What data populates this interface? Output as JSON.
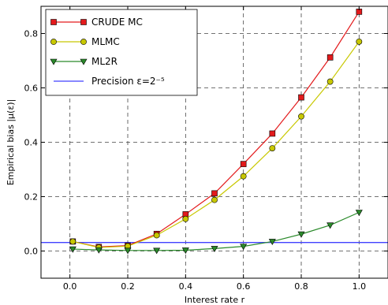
{
  "chart_data": {
    "type": "line",
    "xlabel": "Interest rate r",
    "ylabel": "Empirical bias |μ(ε)|",
    "xlim": [
      -0.1,
      1.1
    ],
    "ylim": [
      -0.1,
      0.9
    ],
    "xticks": [
      "0.0",
      "0.2",
      "0.4",
      "0.6",
      "0.8",
      "1.0"
    ],
    "yticks": [
      "0.0",
      "0.2",
      "0.4",
      "0.6",
      "0.8"
    ],
    "grid": true,
    "legend_position": "top-left",
    "series": [
      {
        "name": "CRUDE MC",
        "color": "#e31a1c",
        "marker": "square",
        "x": [
          0.01,
          0.1,
          0.2,
          0.3,
          0.4,
          0.5,
          0.6,
          0.7,
          0.8,
          0.9,
          1.0
        ],
        "y": [
          0.035,
          0.015,
          0.02,
          0.063,
          0.135,
          0.212,
          0.32,
          0.432,
          0.565,
          0.712,
          0.88
        ]
      },
      {
        "name": "MLMC",
        "color": "#c8c800",
        "marker": "circle",
        "x": [
          0.01,
          0.1,
          0.2,
          0.3,
          0.4,
          0.5,
          0.6,
          0.7,
          0.8,
          0.9,
          1.0
        ],
        "y": [
          0.035,
          0.013,
          0.018,
          0.058,
          0.118,
          0.188,
          0.275,
          0.378,
          0.495,
          0.623,
          0.77
        ]
      },
      {
        "name": "ML2R",
        "color": "#2a8a2a",
        "marker": "triangle-down",
        "x": [
          0.01,
          0.1,
          0.2,
          0.3,
          0.4,
          0.5,
          0.6,
          0.7,
          0.8,
          0.9,
          1.0
        ],
        "y": [
          0.007,
          0.004,
          0.002,
          0.002,
          0.003,
          0.009,
          0.017,
          0.035,
          0.062,
          0.095,
          0.142
        ]
      }
    ],
    "reference_line": {
      "name": "Precision ε=2⁻⁵",
      "color": "#4040ff",
      "y": 0.03125
    }
  }
}
